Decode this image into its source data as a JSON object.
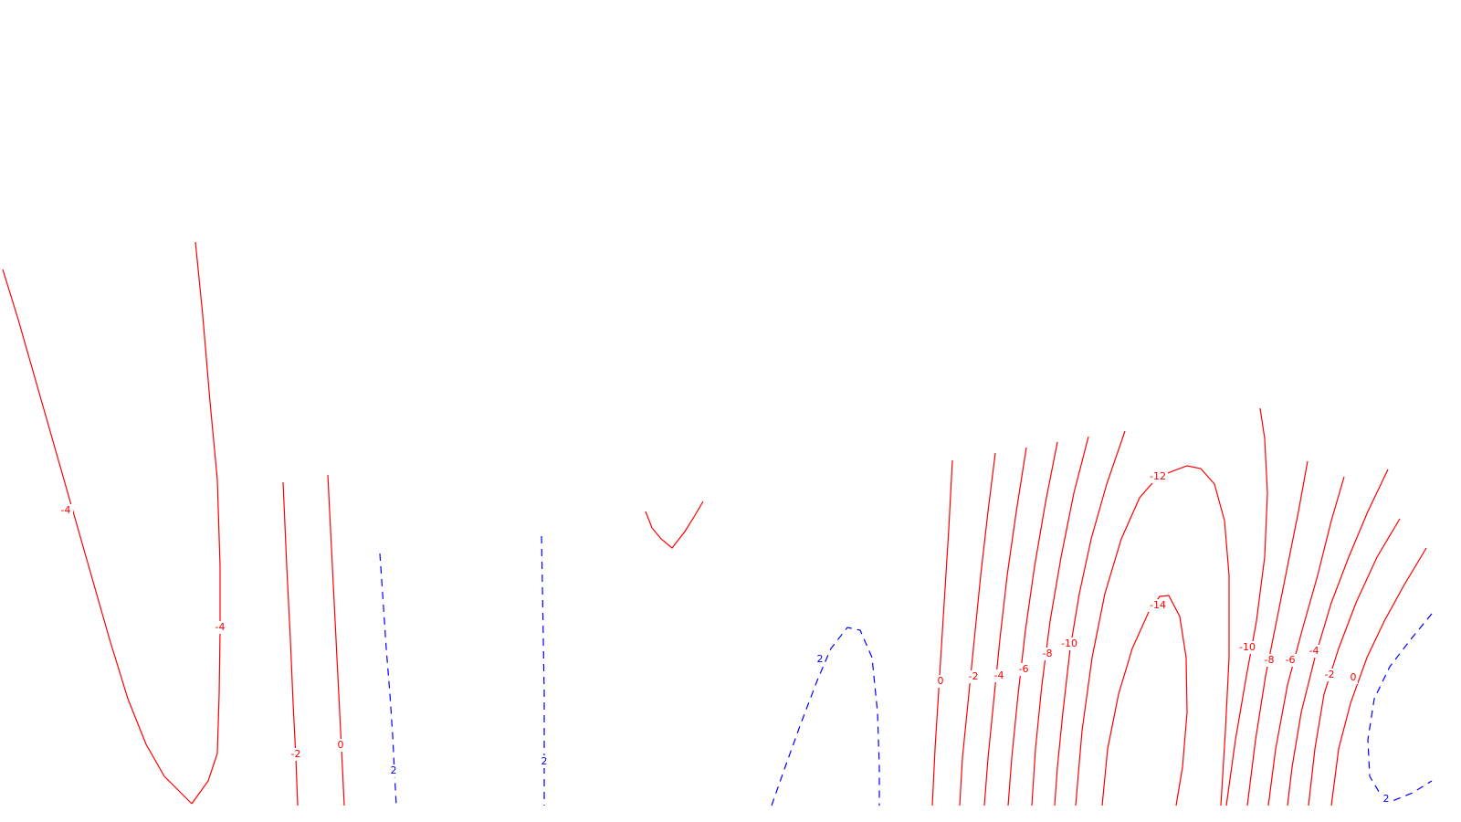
{
  "chart_data": {
    "type": "contour",
    "title": "",
    "xlabel": "",
    "ylabel": "",
    "grid": false,
    "legend": "none",
    "style": {
      "negative_color": "#ff0000",
      "negative_line": "solid",
      "positive_color": "#0000ff",
      "positive_line": "dashed",
      "background": "#ffffff"
    },
    "contour_levels": [
      "-14",
      "-12",
      "-10",
      "-8",
      "-6",
      "-4",
      "-2",
      "0",
      "2"
    ],
    "labels": [
      {
        "text": "-4",
        "sign": "neg"
      },
      {
        "text": "-4",
        "sign": "neg"
      },
      {
        "text": "-2",
        "sign": "neg"
      },
      {
        "text": "0",
        "sign": "neg"
      },
      {
        "text": "2",
        "sign": "pos"
      },
      {
        "text": "2",
        "sign": "pos"
      },
      {
        "text": "2",
        "sign": "pos"
      },
      {
        "text": "0",
        "sign": "neg"
      },
      {
        "text": "-2",
        "sign": "neg"
      },
      {
        "text": "-4",
        "sign": "neg"
      },
      {
        "text": "-6",
        "sign": "neg"
      },
      {
        "text": "-8",
        "sign": "neg"
      },
      {
        "text": "-10",
        "sign": "neg"
      },
      {
        "text": "-12",
        "sign": "neg"
      },
      {
        "text": "-14",
        "sign": "neg"
      },
      {
        "text": "-10",
        "sign": "neg"
      },
      {
        "text": "-8",
        "sign": "neg"
      },
      {
        "text": "-6",
        "sign": "neg"
      },
      {
        "text": "-4",
        "sign": "neg"
      },
      {
        "text": "-2",
        "sign": "neg"
      },
      {
        "text": "0",
        "sign": "neg"
      },
      {
        "text": "2",
        "sign": "pos"
      }
    ]
  }
}
